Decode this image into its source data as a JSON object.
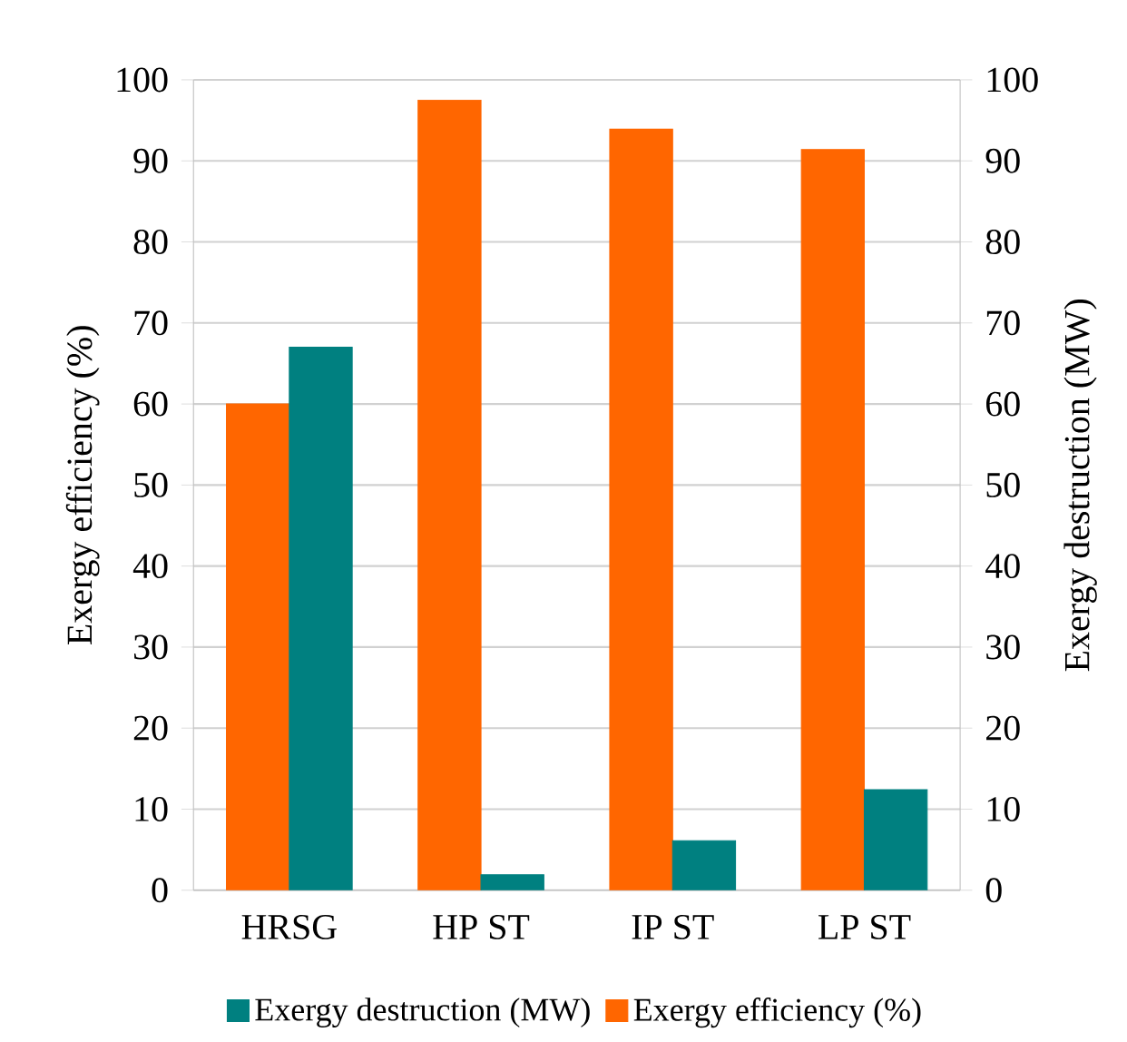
{
  "chart_data": {
    "type": "bar",
    "categories": [
      "HRSG",
      "HP ST",
      "IP ST",
      "LP ST"
    ],
    "series": [
      {
        "name": "Exergy destruction (MW)",
        "color": "#008080",
        "axis": "y2",
        "values": [
          67.0,
          1.9,
          6.1,
          12.4
        ]
      },
      {
        "name": "Exergy efficiency (%)",
        "color": "#ff6600",
        "values": [
          60.0,
          97.5,
          93.9,
          91.4
        ]
      }
    ],
    "ylabel": "Exergy efficiency (%)",
    "y2label": "Exergy destruction (MW)",
    "ylim": [
      0,
      100
    ],
    "yticks": [
      0,
      10,
      20,
      30,
      40,
      50,
      60,
      70,
      80,
      90,
      100
    ],
    "y2lim": [
      0,
      100
    ],
    "y2ticks": [
      0,
      10,
      20,
      30,
      40,
      50,
      60,
      70,
      80,
      90,
      100
    ],
    "grid": "y",
    "legend": "bottom"
  }
}
